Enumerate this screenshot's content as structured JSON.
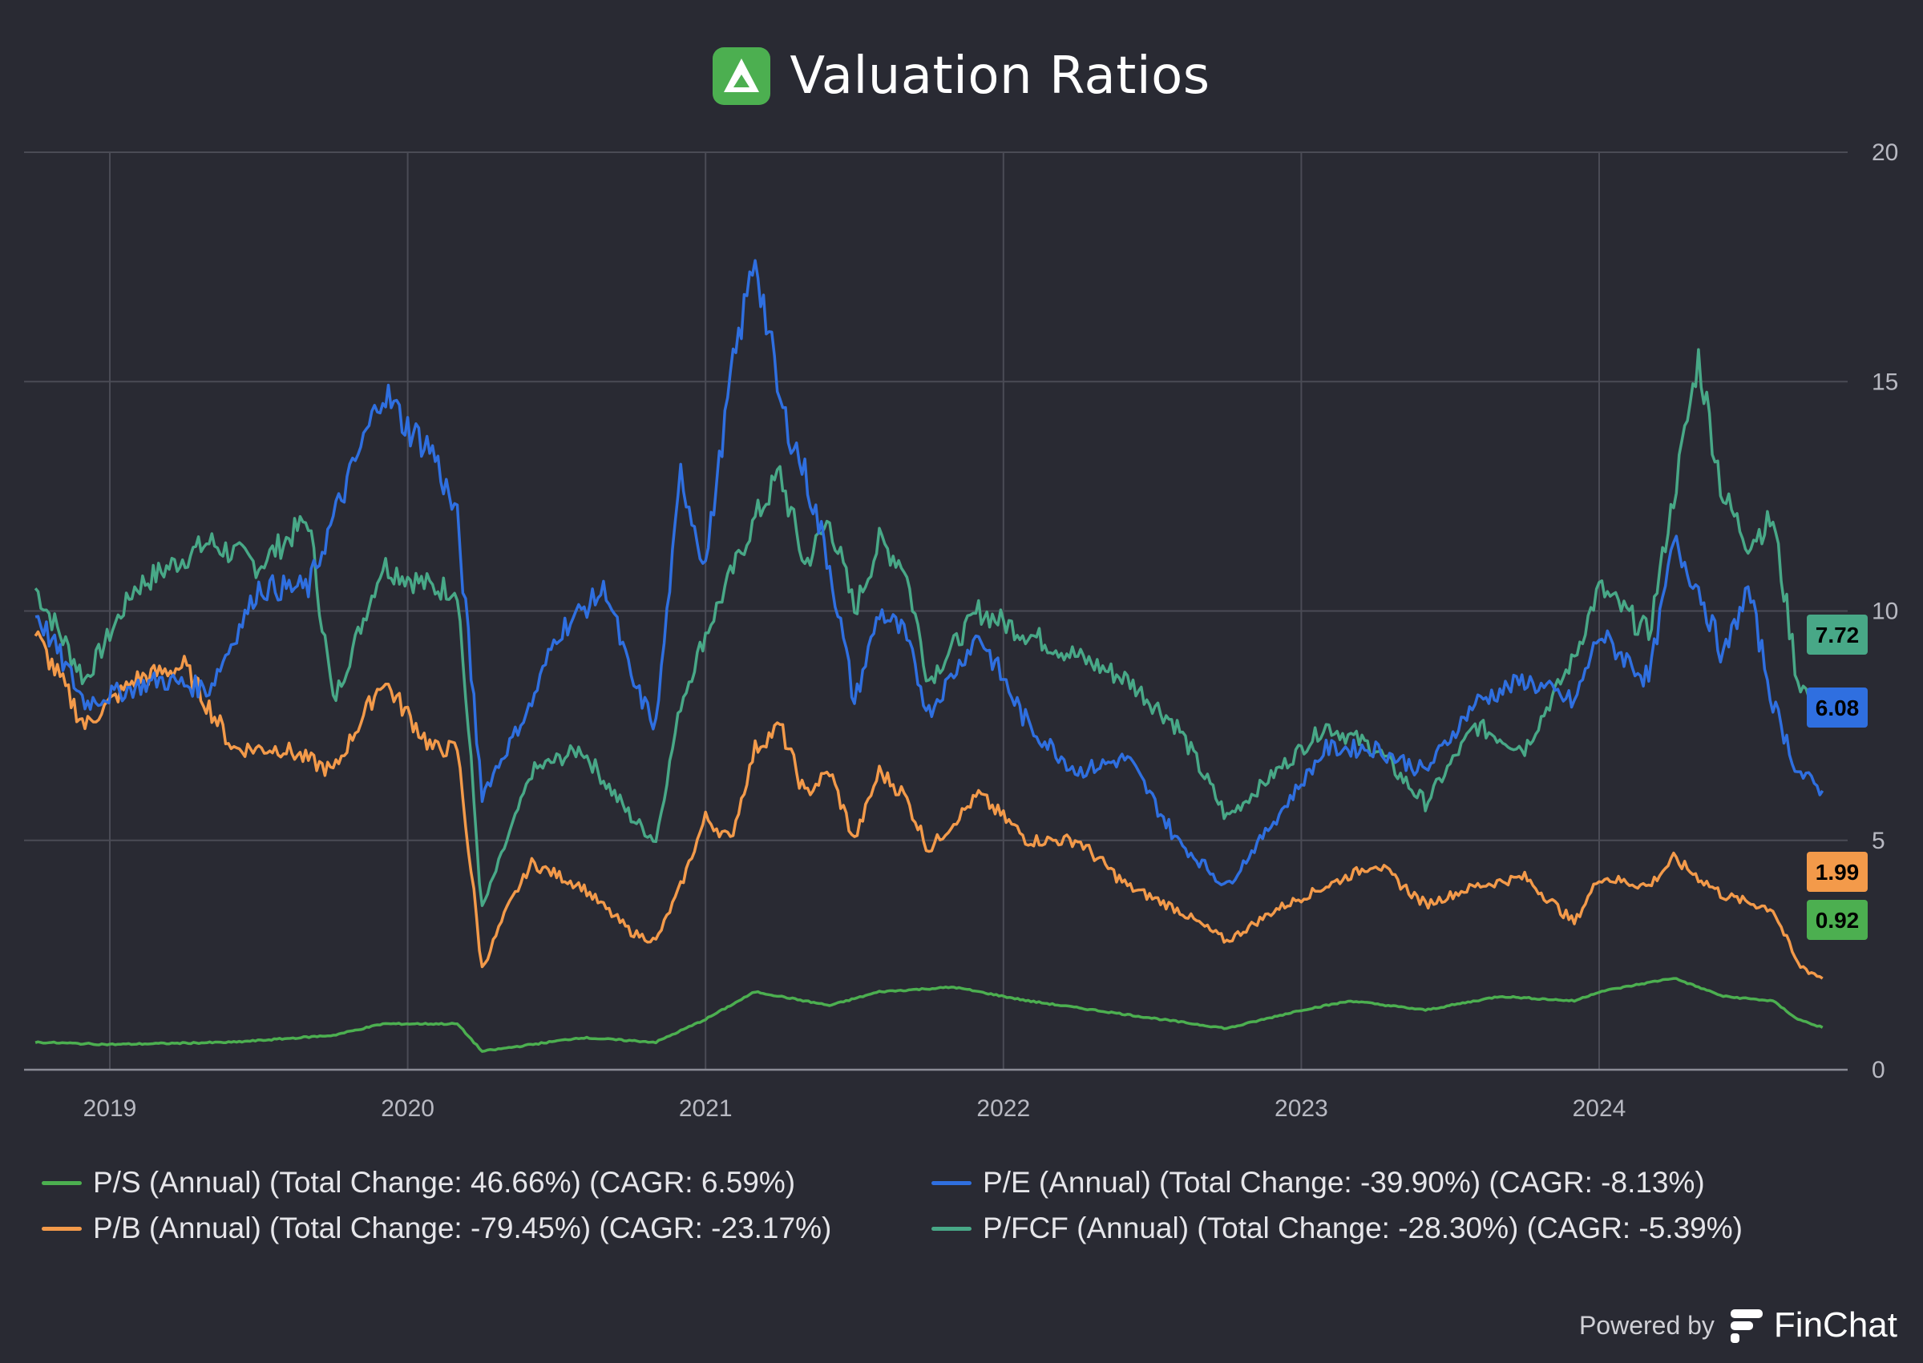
{
  "header": {
    "title": "Valuation Ratios",
    "logo_icon": "finchat-triangle-icon"
  },
  "chart_data": {
    "type": "line",
    "title": "Valuation Ratios",
    "xlabel": "",
    "ylabel": "",
    "x_ticks": [
      "2019",
      "2020",
      "2021",
      "2022",
      "2023",
      "2024"
    ],
    "y_ticks": [
      0,
      5,
      10,
      15,
      20
    ],
    "ylim": [
      0,
      20
    ],
    "y_axis_position": "right",
    "grid": true,
    "legend_position": "bottom",
    "series": [
      {
        "name": "P/S (Annual) (Total Change: 46.66%) (CAGR: 6.59%)",
        "color": "#4caf50",
        "last_value": "0.92",
        "points": [
          [
            "2018-10",
            0.6
          ],
          [
            "2019-01",
            0.55
          ],
          [
            "2019-06",
            0.6
          ],
          [
            "2019-10",
            0.75
          ],
          [
            "2019-12",
            1.0
          ],
          [
            "2020-03",
            1.0
          ],
          [
            "2020-04",
            0.4
          ],
          [
            "2020-08",
            0.7
          ],
          [
            "2020-11",
            0.6
          ],
          [
            "2021-01",
            1.1
          ],
          [
            "2021-03",
            1.7
          ],
          [
            "2021-06",
            1.4
          ],
          [
            "2021-08",
            1.7
          ],
          [
            "2021-11",
            1.8
          ],
          [
            "2022-02",
            1.5
          ],
          [
            "2022-06",
            1.2
          ],
          [
            "2022-10",
            0.9
          ],
          [
            "2023-01",
            1.3
          ],
          [
            "2023-03",
            1.5
          ],
          [
            "2023-06",
            1.3
          ],
          [
            "2023-09",
            1.6
          ],
          [
            "2023-12",
            1.5
          ],
          [
            "2024-01",
            1.7
          ],
          [
            "2024-04",
            2.0
          ],
          [
            "2024-06",
            1.6
          ],
          [
            "2024-08",
            1.5
          ],
          [
            "2024-09",
            1.1
          ],
          [
            "2024-10",
            0.92
          ]
        ]
      },
      {
        "name": "P/E (Annual) (Total Change: -39.90%) (CAGR: -8.13%)",
        "color": "#2f6fe0",
        "last_value": "6.08",
        "points": [
          [
            "2018-10",
            10.0
          ],
          [
            "2018-12",
            8.0
          ],
          [
            "2019-03",
            8.5
          ],
          [
            "2019-05",
            8.3
          ],
          [
            "2019-07",
            10.5
          ],
          [
            "2019-09",
            10.5
          ],
          [
            "2019-10",
            12.0
          ],
          [
            "2019-12",
            14.8
          ],
          [
            "2020-01",
            14.0
          ],
          [
            "2020-02",
            13.5
          ],
          [
            "2020-03",
            12.0
          ],
          [
            "2020-04",
            6.0
          ],
          [
            "2020-06",
            8.0
          ],
          [
            "2020-07",
            9.5
          ],
          [
            "2020-09",
            10.5
          ],
          [
            "2020-10",
            8.5
          ],
          [
            "2020-11",
            7.5
          ],
          [
            "2020-12",
            13.0
          ],
          [
            "2021-01",
            11.0
          ],
          [
            "2021-02",
            15.0
          ],
          [
            "2021-03",
            17.8
          ],
          [
            "2021-04",
            14.5
          ],
          [
            "2021-05",
            13.0
          ],
          [
            "2021-06",
            11.0
          ],
          [
            "2021-07",
            8.0
          ],
          [
            "2021-08",
            10.0
          ],
          [
            "2021-09",
            9.5
          ],
          [
            "2021-10",
            7.8
          ],
          [
            "2021-12",
            9.5
          ],
          [
            "2022-02",
            7.5
          ],
          [
            "2022-04",
            6.5
          ],
          [
            "2022-06",
            6.8
          ],
          [
            "2022-08",
            5.0
          ],
          [
            "2022-10",
            4.0
          ],
          [
            "2022-12",
            5.5
          ],
          [
            "2023-02",
            7.0
          ],
          [
            "2023-04",
            7.0
          ],
          [
            "2023-06",
            6.5
          ],
          [
            "2023-08",
            8.0
          ],
          [
            "2023-10",
            8.5
          ],
          [
            "2023-12",
            8.0
          ],
          [
            "2024-01",
            9.5
          ],
          [
            "2024-03",
            8.5
          ],
          [
            "2024-04",
            11.5
          ],
          [
            "2024-05",
            10.5
          ],
          [
            "2024-06",
            9.0
          ],
          [
            "2024-07",
            10.5
          ],
          [
            "2024-08",
            8.0
          ],
          [
            "2024-09",
            6.5
          ],
          [
            "2024-10",
            6.08
          ]
        ]
      },
      {
        "name": "P/B (Annual) (Total Change: -79.45%) (CAGR: -23.17%)",
        "color": "#f39a4a",
        "last_value": "1.99",
        "points": [
          [
            "2018-10",
            9.5
          ],
          [
            "2018-12",
            7.5
          ],
          [
            "2019-02",
            8.5
          ],
          [
            "2019-04",
            8.8
          ],
          [
            "2019-06",
            7.0
          ],
          [
            "2019-08",
            7.0
          ],
          [
            "2019-10",
            6.5
          ],
          [
            "2019-11",
            7.5
          ],
          [
            "2019-12",
            8.5
          ],
          [
            "2020-02",
            7.0
          ],
          [
            "2020-03",
            7.0
          ],
          [
            "2020-04",
            2.2
          ],
          [
            "2020-05",
            3.5
          ],
          [
            "2020-06",
            4.5
          ],
          [
            "2020-08",
            4.0
          ],
          [
            "2020-10",
            3.0
          ],
          [
            "2020-11",
            2.8
          ],
          [
            "2020-12",
            4.0
          ],
          [
            "2021-01",
            5.5
          ],
          [
            "2021-02",
            5.0
          ],
          [
            "2021-03",
            7.0
          ],
          [
            "2021-04",
            7.5
          ],
          [
            "2021-05",
            6.0
          ],
          [
            "2021-06",
            6.5
          ],
          [
            "2021-07",
            5.0
          ],
          [
            "2021-08",
            6.5
          ],
          [
            "2021-09",
            6.0
          ],
          [
            "2021-10",
            4.8
          ],
          [
            "2021-12",
            6.0
          ],
          [
            "2022-02",
            5.0
          ],
          [
            "2022-04",
            5.0
          ],
          [
            "2022-06",
            4.0
          ],
          [
            "2022-08",
            3.5
          ],
          [
            "2022-10",
            2.8
          ],
          [
            "2022-12",
            3.5
          ],
          [
            "2023-02",
            4.0
          ],
          [
            "2023-04",
            4.5
          ],
          [
            "2023-06",
            3.6
          ],
          [
            "2023-08",
            4.0
          ],
          [
            "2023-10",
            4.2
          ],
          [
            "2023-12",
            3.2
          ],
          [
            "2024-01",
            4.2
          ],
          [
            "2024-03",
            4.0
          ],
          [
            "2024-04",
            4.6
          ],
          [
            "2024-06",
            3.8
          ],
          [
            "2024-08",
            3.5
          ],
          [
            "2024-09",
            2.3
          ],
          [
            "2024-10",
            1.99
          ]
        ]
      },
      {
        "name": "P/FCF (Annual) (Total Change: -28.30%) (CAGR: -5.39%)",
        "color": "#48a887",
        "last_value": "7.72",
        "points": [
          [
            "2018-10",
            10.5
          ],
          [
            "2018-12",
            8.5
          ],
          [
            "2019-02",
            10.5
          ],
          [
            "2019-05",
            11.5
          ],
          [
            "2019-07",
            11.0
          ],
          [
            "2019-09",
            12.0
          ],
          [
            "2019-10",
            8.0
          ],
          [
            "2019-12",
            11.0
          ],
          [
            "2020-02",
            10.5
          ],
          [
            "2020-03",
            10.5
          ],
          [
            "2020-04",
            3.5
          ],
          [
            "2020-06",
            6.5
          ],
          [
            "2020-08",
            7.0
          ],
          [
            "2020-10",
            5.5
          ],
          [
            "2020-11",
            5.0
          ],
          [
            "2020-12",
            8.0
          ],
          [
            "2021-01",
            9.5
          ],
          [
            "2021-03",
            12.0
          ],
          [
            "2021-04",
            13.0
          ],
          [
            "2021-05",
            11.0
          ],
          [
            "2021-06",
            12.0
          ],
          [
            "2021-07",
            10.0
          ],
          [
            "2021-08",
            11.5
          ],
          [
            "2021-09",
            11.0
          ],
          [
            "2021-10",
            8.5
          ],
          [
            "2021-12",
            10.0
          ],
          [
            "2022-02",
            9.5
          ],
          [
            "2022-04",
            9.0
          ],
          [
            "2022-06",
            8.5
          ],
          [
            "2022-08",
            7.5
          ],
          [
            "2022-10",
            5.5
          ],
          [
            "2022-12",
            6.5
          ],
          [
            "2023-02",
            7.5
          ],
          [
            "2023-04",
            7.0
          ],
          [
            "2023-06",
            5.8
          ],
          [
            "2023-08",
            7.5
          ],
          [
            "2023-10",
            7.0
          ],
          [
            "2023-12",
            9.0
          ],
          [
            "2024-01",
            10.5
          ],
          [
            "2024-03",
            9.5
          ],
          [
            "2024-04",
            12.5
          ],
          [
            "2024-05",
            15.5
          ],
          [
            "2024-06",
            12.5
          ],
          [
            "2024-07",
            11.5
          ],
          [
            "2024-08",
            12.0
          ],
          [
            "2024-09",
            8.5
          ],
          [
            "2024-10",
            7.72
          ]
        ]
      }
    ]
  },
  "legend": {
    "items": [
      {
        "name": "P/S (Annual) (Total Change: 46.66%) (CAGR: 6.59%)",
        "color": "#4caf50"
      },
      {
        "name": "P/E (Annual) (Total Change: -39.90%) (CAGR: -8.13%)",
        "color": "#2f6fe0"
      },
      {
        "name": "P/B (Annual) (Total Change: -79.45%) (CAGR: -23.17%)",
        "color": "#f39a4a"
      },
      {
        "name": "P/FCF (Annual) (Total Change: -28.30%) (CAGR: -5.39%)",
        "color": "#48a887"
      }
    ]
  },
  "value_labels": [
    {
      "text": "7.72",
      "color": "#48a887"
    },
    {
      "text": "6.08",
      "color": "#2f6fe0"
    },
    {
      "text": "1.99",
      "color": "#f39a4a"
    },
    {
      "text": "0.92",
      "color": "#4caf50"
    }
  ],
  "footer": {
    "powered_by": "Powered by",
    "brand": "FinChat",
    "brand_icon": "finchat-f-icon"
  }
}
